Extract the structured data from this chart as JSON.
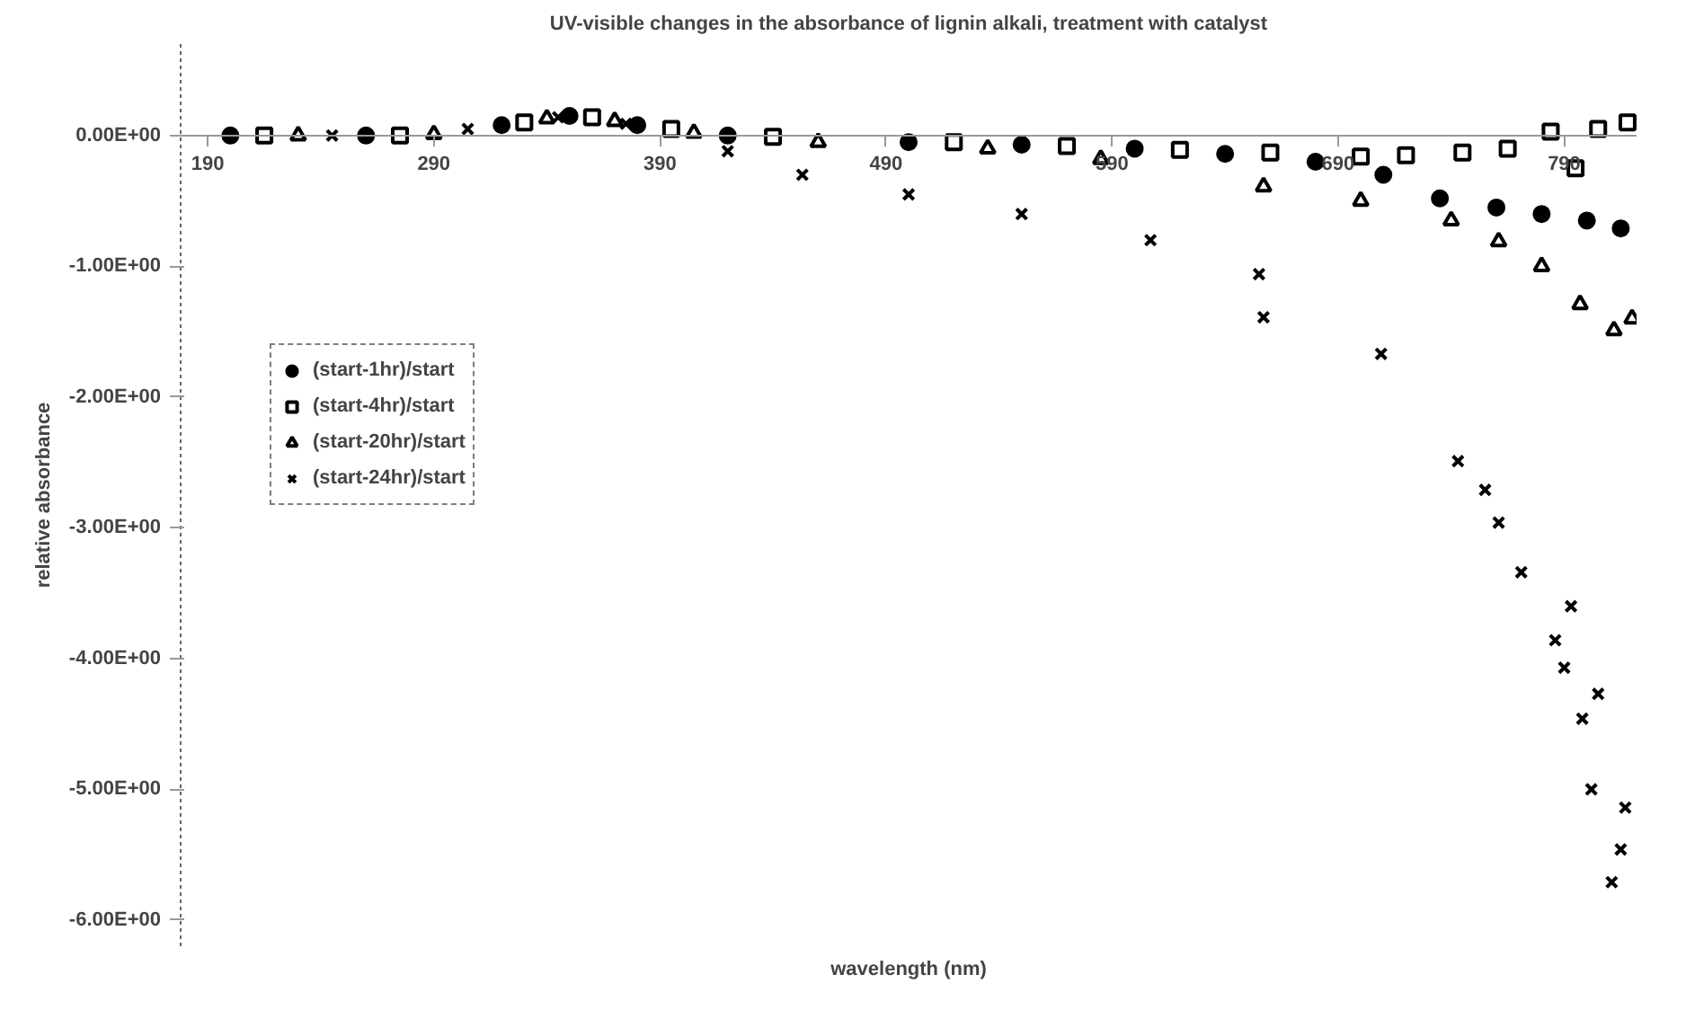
{
  "chart_data": {
    "type": "scatter",
    "title": "UV-visible changes in the absorbance of lignin alkali, treatment with catalyst",
    "xlabel": "wavelength (nm)",
    "ylabel": "relative absorbance",
    "xlim": [
      178,
      822
    ],
    "ylim": [
      -6.2,
      0.7
    ],
    "xticks": [
      190,
      290,
      390,
      490,
      590,
      690,
      790
    ],
    "yticks": [
      {
        "value": 0,
        "label": "0.00E+00"
      },
      {
        "value": -1,
        "label": "-1.00E+00"
      },
      {
        "value": -2,
        "label": "-2.00E+00"
      },
      {
        "value": -3,
        "label": "-3.00E+00"
      },
      {
        "value": -4,
        "label": "-4.00E+00"
      },
      {
        "value": -5,
        "label": "-5.00E+00"
      },
      {
        "value": -6,
        "label": "-6.00E+00"
      }
    ],
    "grid": false,
    "legend": "top left",
    "series": [
      {
        "name": "(start-1hr)/start",
        "color": "#000000",
        "marker": "circle",
        "x": [
          200,
          260,
          320,
          350,
          380,
          420,
          500,
          550,
          600,
          640,
          680,
          710,
          735,
          760,
          780,
          800,
          815
        ],
        "values": [
          0,
          0,
          0.08,
          0.15,
          0.08,
          0,
          -0.05,
          -0.07,
          -0.1,
          -0.14,
          -0.2,
          -0.3,
          -0.48,
          -0.55,
          -0.6,
          -0.65,
          -0.71
        ]
      },
      {
        "name": "(start-4hr)/start",
        "color": "#000000",
        "marker": "square",
        "x": [
          215,
          275,
          330,
          360,
          395,
          440,
          520,
          570,
          620,
          660,
          700,
          720,
          745,
          765,
          784,
          795,
          805,
          818
        ],
        "values": [
          0,
          0,
          0.1,
          0.14,
          0.05,
          -0.01,
          -0.05,
          -0.08,
          -0.11,
          -0.13,
          -0.16,
          -0.15,
          -0.13,
          -0.1,
          0.03,
          -0.25,
          0.05,
          0.1
        ]
      },
      {
        "name": "(start-20hr)/start",
        "color": "#000000",
        "marker": "triangle",
        "x": [
          230,
          290,
          340,
          370,
          405,
          460,
          535,
          585,
          657,
          700,
          740,
          761,
          780,
          797,
          812,
          820
        ],
        "values": [
          0,
          0.01,
          0.13,
          0.11,
          0.02,
          -0.05,
          -0.1,
          -0.18,
          -0.39,
          -0.5,
          -0.65,
          -0.81,
          -1.0,
          -1.29,
          -1.49,
          -1.4
        ]
      },
      {
        "name": "(start-24hr)/start",
        "color": "#000000",
        "marker": "cross",
        "x": [
          245,
          305,
          345,
          375,
          420,
          453,
          500,
          550,
          607,
          655,
          657,
          709,
          743,
          755,
          761,
          771,
          786,
          790,
          793,
          798,
          802,
          805,
          811,
          815,
          817
        ],
        "values": [
          0,
          0.05,
          0.14,
          0.09,
          -0.12,
          -0.3,
          -0.45,
          -0.6,
          -0.8,
          -1.06,
          -1.39,
          -1.67,
          -2.49,
          -2.71,
          -2.96,
          -3.34,
          -3.86,
          -4.07,
          -3.6,
          -4.46,
          -5.0,
          -4.27,
          -5.71,
          -5.46,
          -5.14
        ]
      }
    ]
  }
}
